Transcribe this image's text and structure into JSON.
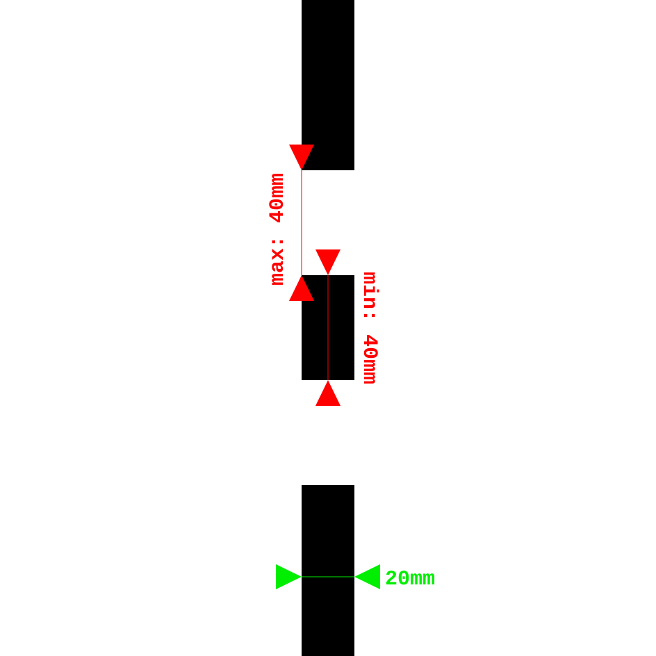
{
  "diagram": {
    "max_label": "max: 40mm",
    "min_label": "min: 40mm",
    "width_label": "20mm",
    "colors": {
      "background": "#ffffff",
      "segment": "#000000",
      "max_dimension": "#ff0000",
      "min_dimension": "#ff0000",
      "width_dimension": "#00ee00"
    }
  }
}
